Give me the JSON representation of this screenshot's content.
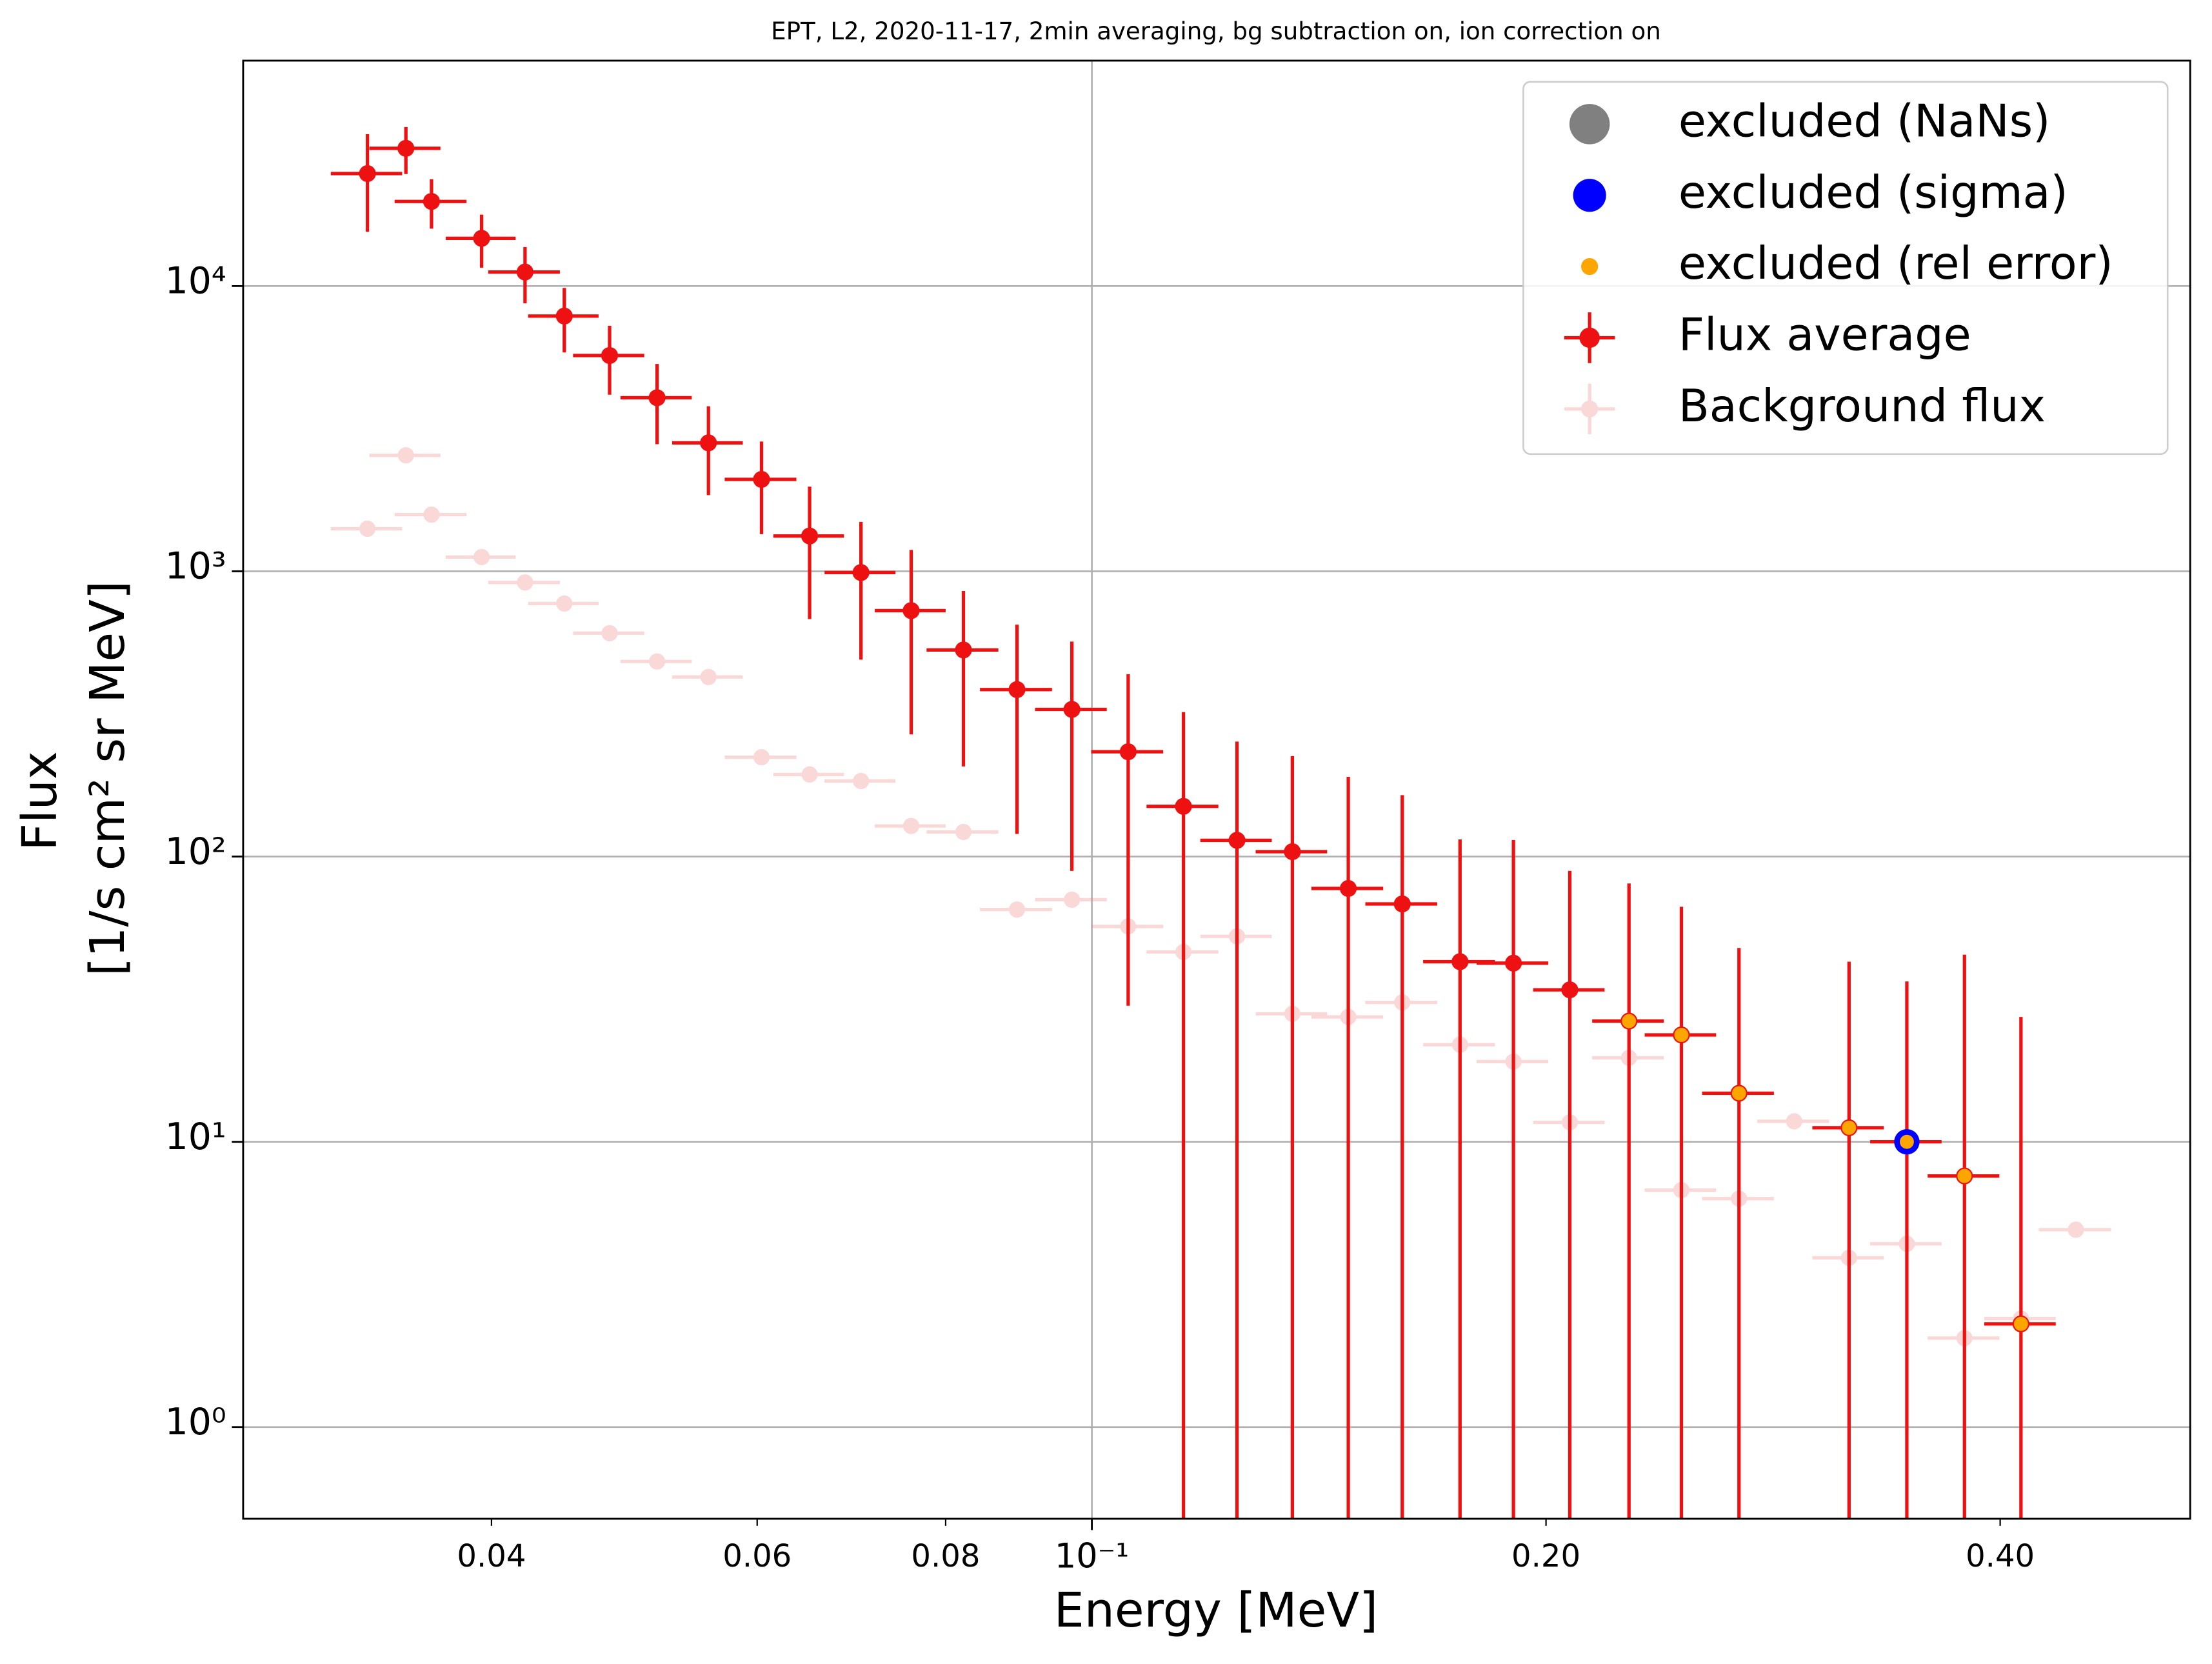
{
  "chart_data": {
    "type": "errorbar",
    "title": "EPT, L2, 2020-11-17, 2min averaging, bg subtraction on, ion correction on",
    "xlabel": "Energy [MeV]",
    "ylabel": [
      "Flux",
      "[1/s cm² sr MeV]"
    ],
    "xscale": "log",
    "yscale": "log",
    "xlim": [
      0.02738,
      0.5346
    ],
    "ylim": [
      0.477,
      61700
    ],
    "xticks": [
      {
        "value": 0.1,
        "label": "10⁻¹"
      }
    ],
    "xminorticks": [
      {
        "value": 0.04,
        "label": "0.04"
      },
      {
        "value": 0.06,
        "label": "0.06"
      },
      {
        "value": 0.08,
        "label": "0.08"
      },
      {
        "value": 0.2,
        "label": "0.20"
      },
      {
        "value": 0.4,
        "label": "0.40"
      }
    ],
    "yticks": [
      {
        "value": 1,
        "label": "10⁰"
      },
      {
        "value": 10,
        "label": "10¹"
      },
      {
        "value": 100,
        "label": "10²"
      },
      {
        "value": 1000,
        "label": "10³"
      },
      {
        "value": 10000,
        "label": "10⁴"
      }
    ],
    "grid": true,
    "legend": "upper right",
    "series": [
      {
        "name": "excluded (NaNs)",
        "color": "#808080",
        "x": [],
        "values": []
      },
      {
        "name": "excluded (sigma)",
        "color": "#0000ff",
        "x": [
          0.3469
        ],
        "values": [
          10.0
        ]
      },
      {
        "name": "excluded (rel error)",
        "color": "#ffa500",
        "x": [
          0.227,
          0.2459,
          0.2685,
          0.3176,
          0.3469,
          0.3788,
          0.4129
        ],
        "values": [
          26.5,
          23.7,
          14.8,
          11.2,
          10.0,
          7.59,
          2.3
        ]
      },
      {
        "name": "Flux average",
        "color": "#ee1111",
        "x": [
          0.0331,
          0.0351,
          0.0365,
          0.0394,
          0.0421,
          0.0447,
          0.0479,
          0.0515,
          0.0557,
          0.0604,
          0.065,
          0.0703,
          0.0759,
          0.0822,
          0.0892,
          0.097,
          0.1057,
          0.115,
          0.1248,
          0.1358,
          0.1479,
          0.1606,
          0.1754,
          0.1903,
          0.2074,
          0.227,
          0.2459,
          0.2685,
          0.3176,
          0.3469,
          0.3788,
          0.4129
        ],
        "values": [
          24800,
          30400,
          19800,
          14700,
          11200,
          7850,
          5710,
          4060,
          2820,
          2100,
          1330,
          990,
          728,
          530,
          385,
          328,
          233,
          150,
          114,
          104,
          77.3,
          68.2,
          42.8,
          42.3,
          34.1,
          26.5,
          23.7,
          14.8,
          11.2,
          10.0,
          7.59,
          2.3
        ],
        "xerr": [
          0.0018,
          0.0019,
          0.002,
          0.0021,
          0.0023,
          0.0024,
          0.0026,
          0.0028,
          0.003,
          0.0033,
          0.0035,
          0.0038,
          0.0041,
          0.0045,
          0.0049,
          0.0053,
          0.0058,
          0.0063,
          0.0068,
          0.0074,
          0.0081,
          0.0088,
          0.0096,
          0.0104,
          0.0113,
          0.0124,
          0.0134,
          0.0147,
          0.0173,
          0.0189,
          0.0207,
          0.0225
        ],
        "yerr": [
          9300,
          5700,
          3900,
          3100,
          2500,
          2000,
          1550,
          1270,
          970,
          750,
          650,
          500,
          460,
          323,
          265,
          239,
          203,
          171,
          139,
          121,
          113,
          96,
          72,
          72,
          55,
          54,
          43,
          33,
          31.6,
          26.5,
          37.7,
          25.1
        ]
      },
      {
        "name": "Background flux",
        "color": "#f08080",
        "x": [
          0.0331,
          0.0351,
          0.0365,
          0.0394,
          0.0421,
          0.0447,
          0.0479,
          0.0515,
          0.0557,
          0.0604,
          0.065,
          0.0703,
          0.0759,
          0.0822,
          0.0892,
          0.097,
          0.1057,
          0.115,
          0.1248,
          0.1358,
          0.1479,
          0.1606,
          0.1754,
          0.1903,
          0.2074,
          0.227,
          0.2459,
          0.2685,
          0.2921,
          0.3176,
          0.3469,
          0.3788,
          0.4129,
          0.449
        ],
        "values": [
          1410,
          2550,
          1580,
          1122,
          914,
          771,
          607,
          483,
          426,
          223,
          194,
          184,
          128,
          122,
          65.2,
          70.6,
          56.9,
          46.3,
          52.5,
          28.1,
          27.4,
          30.8,
          21.9,
          19.1,
          11.7,
          19.7,
          6.77,
          6.32,
          11.8,
          3.92,
          4.39,
          2.05,
          2.4,
          4.92
        ],
        "xerr": [
          0.0018,
          0.0019,
          0.002,
          0.0021,
          0.0023,
          0.0024,
          0.0026,
          0.0028,
          0.003,
          0.0033,
          0.0035,
          0.0038,
          0.0041,
          0.0045,
          0.0049,
          0.0053,
          0.0058,
          0.0063,
          0.0068,
          0.0074,
          0.0081,
          0.0088,
          0.0096,
          0.0104,
          0.0113,
          0.0124,
          0.0134,
          0.0147,
          0.016,
          0.0173,
          0.0189,
          0.0207,
          0.0225,
          0.0247
        ]
      }
    ]
  }
}
